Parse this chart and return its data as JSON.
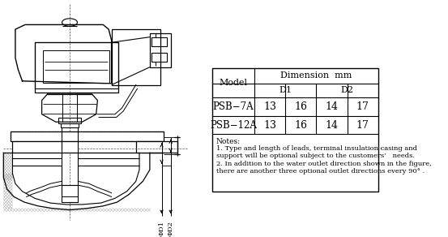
{
  "bg_color": "#ffffff",
  "table_header": "Dimension  mm",
  "rows": [
    [
      "PSB−7A",
      "13",
      "16",
      "14",
      "17"
    ],
    [
      "PSB−12A",
      "13",
      "16",
      "14",
      "17"
    ]
  ],
  "notes_title": "Notes:",
  "notes": [
    "1. Type and length of leads, terminal insulation casing and",
    "support will be optional subject to the customers’   needs.",
    "2. In addition to the water outlet direction shown in the figure,",
    "there are another three optional outlet directions every 90° ."
  ],
  "dim_labels": [
    "ΦD1",
    "ΦD2"
  ],
  "hatch_color": "#aaaaaa",
  "line_color": "#000000"
}
